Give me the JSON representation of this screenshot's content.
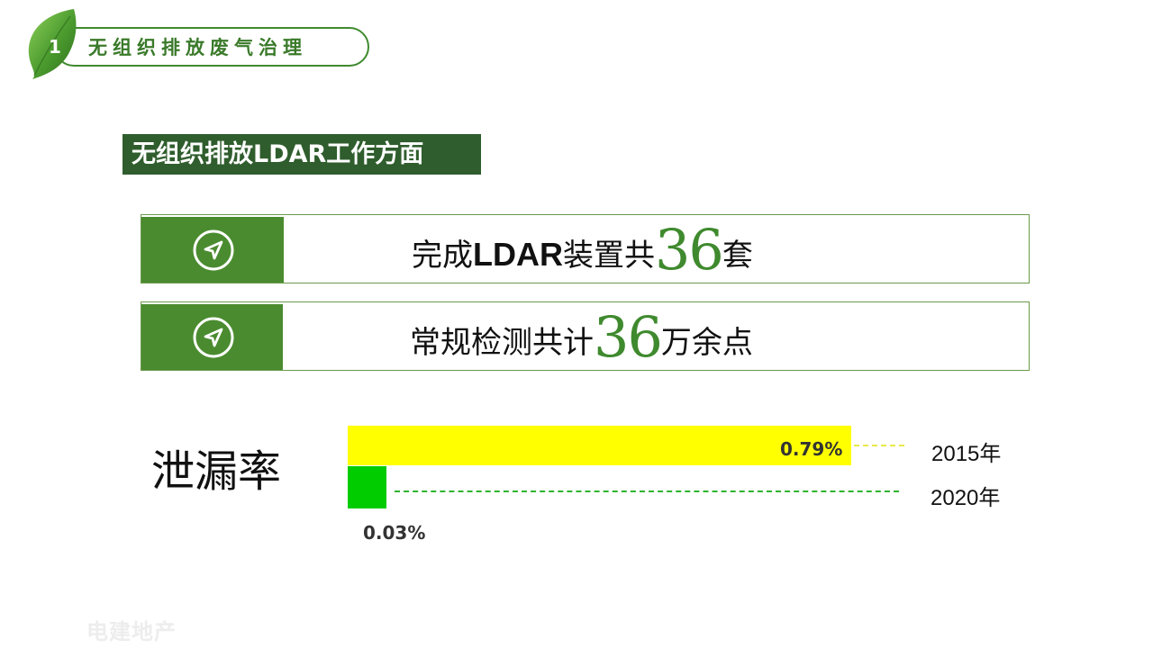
{
  "header": {
    "number": "1",
    "title": "无组织排放废气治理",
    "accent_color": "#3f8a2e",
    "icon": "leaf-icon"
  },
  "section": {
    "label": "无组织排放LDAR工作方面",
    "background": "#2f5d2d"
  },
  "stats": [
    {
      "icon": "navigation-arrow-icon",
      "prefix": "完成",
      "bold": "LDAR",
      "middle": "装置共",
      "number": "36",
      "suffix": "套"
    },
    {
      "icon": "navigation-arrow-icon",
      "prefix": "常规检测共计",
      "bold": "",
      "middle": "",
      "number": "36",
      "suffix": "万余点"
    }
  ],
  "chart_data": {
    "type": "bar",
    "orientation": "horizontal",
    "title": "泄漏率",
    "categories": [
      "2015年",
      "2020年"
    ],
    "values": [
      0.79,
      0.03
    ],
    "value_labels": [
      "0.79%",
      "0.03%"
    ],
    "unit": "%",
    "colors": [
      "#ffff00",
      "#00cc00"
    ],
    "xlim": [
      0,
      0.79
    ],
    "grid": false,
    "legend": "none"
  },
  "watermark": "电建地产"
}
